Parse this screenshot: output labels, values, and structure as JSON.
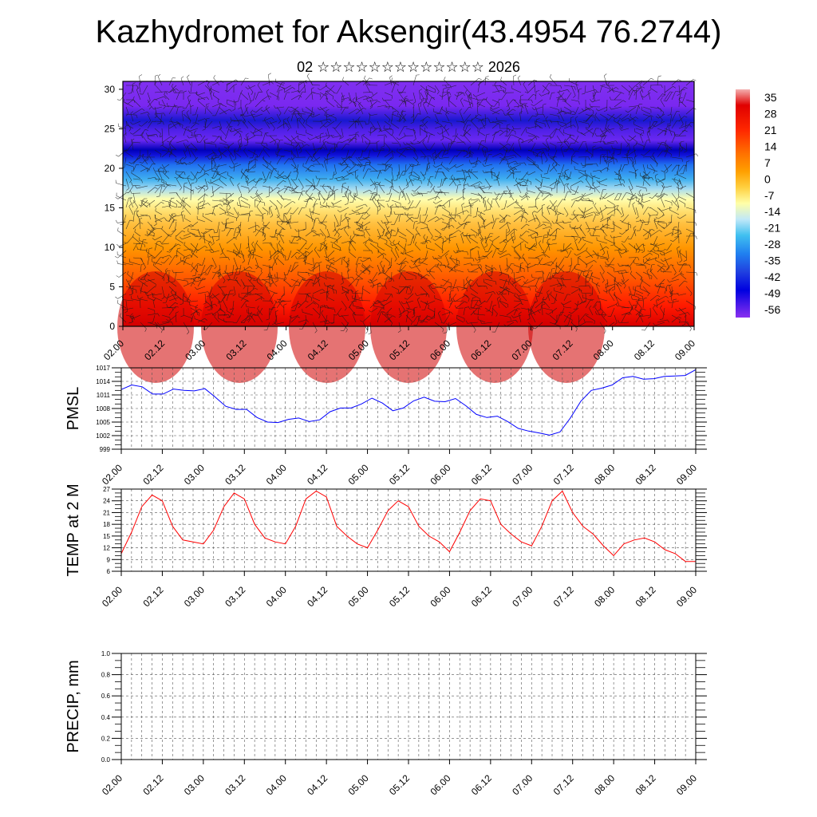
{
  "title": "Kazhydromet for Aksengir(43.4954 76.2744)",
  "subtitle": "02 ☆☆☆☆☆☆☆☆☆☆☆☆☆ 2026",
  "colors": {
    "pmsl_line": "#0000ff",
    "temp_line": "#ff0000",
    "precip_line": "#004000"
  },
  "chart_data": [
    {
      "type": "heatmap",
      "name": "",
      "x_ticks": [
        "02.00",
        "02.12",
        "03.00",
        "03.12",
        "04.00",
        "04.12",
        "05.00",
        "05.12",
        "06.00",
        "06.12",
        "07.00",
        "07.12",
        "08.00",
        "08.12",
        "09.00"
      ],
      "y_ticks": [
        0,
        5,
        10,
        15,
        20,
        25,
        30
      ],
      "ylim": [
        0,
        31
      ],
      "colorbar_labels": [
        "35",
        "28",
        "21",
        "14",
        "7",
        "0",
        "-7",
        "-14",
        "-21",
        "-28",
        "-35",
        "-42",
        "-49",
        "-56"
      ],
      "colorbar_colors": [
        "#f0a0a0",
        "#e00000",
        "#ff2000",
        "#ff7000",
        "#ffa000",
        "#ffd040",
        "#ffffa0",
        "#c0e8f8",
        "#40c0f0",
        "#2080f0",
        "#2040e0",
        "#1010d0",
        "#0000e0",
        "#8020f0"
      ],
      "overlay": "wind barbs"
    },
    {
      "type": "line",
      "ylabel": "PMSL",
      "ylim": [
        999,
        1017
      ],
      "y_ticks": [
        999,
        1002,
        1005,
        1008,
        1011,
        1014,
        1017
      ],
      "x_ticks": [
        "02.00",
        "02.12",
        "03.00",
        "03.12",
        "04.00",
        "04.12",
        "05.00",
        "05.12",
        "06.00",
        "06.12",
        "07.00",
        "07.12",
        "08.00",
        "08.12",
        "09.00"
      ],
      "series": [
        {
          "values": [
            1012.2,
            1013.2,
            1012.8,
            1011.2,
            1011.2,
            1012.3,
            1012.0,
            1011.9,
            1012.4,
            1010.5,
            1008.5,
            1007.8,
            1007.8,
            1006.0,
            1005.0,
            1004.9,
            1005.6,
            1005.9,
            1005.1,
            1005.5,
            1007.3,
            1008.1,
            1008.1,
            1009.0,
            1010.3,
            1009.2,
            1007.5,
            1008.1,
            1009.7,
            1010.5,
            1009.6,
            1009.5,
            1010.2,
            1008.6,
            1006.7,
            1006.0,
            1006.3,
            1005.1,
            1003.6,
            1003.0,
            1002.6,
            1002.1,
            1002.8,
            1005.9,
            1009.6,
            1012.0,
            1012.5,
            1013.2,
            1014.8,
            1015.1,
            1014.5,
            1014.6,
            1015.1,
            1015.2,
            1015.3,
            1016.6
          ]
        }
      ]
    },
    {
      "type": "line",
      "ylabel": "TEMP at 2 M",
      "ylim": [
        6,
        27
      ],
      "y_ticks": [
        6,
        9,
        12,
        15,
        18,
        21,
        24,
        27
      ],
      "x_ticks": [
        "02.00",
        "02.12",
        "03.00",
        "03.12",
        "04.00",
        "04.12",
        "05.00",
        "05.12",
        "06.00",
        "06.12",
        "07.00",
        "07.12",
        "08.00",
        "08.12",
        "09.00"
      ],
      "series": [
        {
          "values": [
            10.5,
            16.0,
            22.5,
            25.5,
            24.0,
            17.5,
            14.0,
            13.5,
            13.0,
            16.5,
            22.5,
            26.0,
            24.5,
            18.0,
            14.5,
            13.5,
            13.0,
            17.5,
            24.5,
            26.5,
            25.0,
            17.5,
            15.0,
            13.0,
            12.0,
            16.5,
            21.5,
            24.0,
            22.5,
            17.5,
            15.0,
            13.5,
            11.0,
            16.0,
            21.5,
            24.5,
            24.0,
            18.0,
            15.5,
            13.5,
            12.5,
            17.5,
            24.0,
            26.5,
            21.0,
            17.5,
            15.5,
            12.5,
            10.0,
            13.0,
            14.0,
            14.5,
            13.5,
            11.5,
            10.5,
            8.5,
            8.5
          ]
        }
      ]
    },
    {
      "type": "line",
      "ylabel": "PRECIP, mm",
      "ylim": [
        0,
        1
      ],
      "y_ticks": [
        "0.0",
        "0.2",
        "0.4",
        "0.6",
        "0.8",
        "1.0"
      ],
      "x_ticks": [
        "02.00",
        "02.12",
        "03.00",
        "03.12",
        "04.00",
        "04.12",
        "05.00",
        "05.12",
        "06.00",
        "06.12",
        "07.00",
        "07.12",
        "08.00",
        "08.12",
        "09.00"
      ],
      "series": [
        {
          "values": [
            0,
            0,
            0,
            0,
            0,
            0,
            0,
            0,
            0,
            0,
            0,
            0,
            0,
            0,
            0
          ]
        }
      ]
    }
  ]
}
